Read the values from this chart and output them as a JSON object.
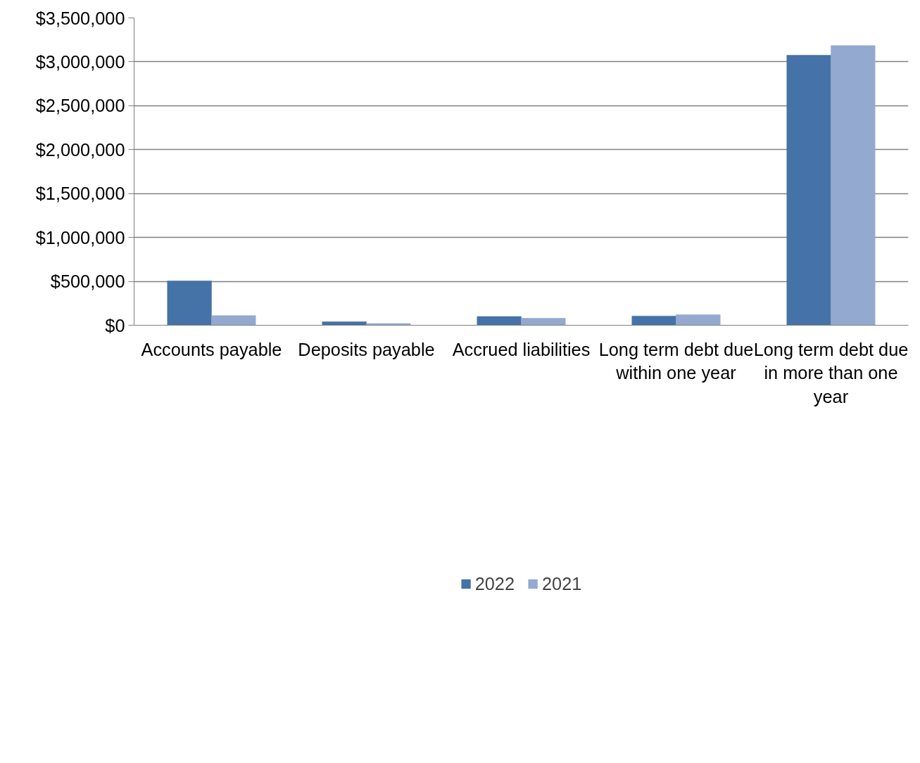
{
  "chart_data": {
    "type": "bar",
    "categories": [
      "Accounts payable",
      "Deposits payable",
      "Accrued liabilities",
      "Long term debt due within one year",
      "Long term debt due in more than one year"
    ],
    "series": [
      {
        "name": "2022",
        "color": "#4572a7",
        "values": [
          505000,
          40000,
          100000,
          105000,
          3075000
        ]
      },
      {
        "name": "2021",
        "color": "#94a9d0",
        "values": [
          110000,
          20000,
          80000,
          120000,
          3185000
        ]
      }
    ],
    "ylim": [
      0,
      3500000
    ],
    "yticks": [
      {
        "value": 0,
        "label": "$0"
      },
      {
        "value": 500000,
        "label": "$500,000"
      },
      {
        "value": 1000000,
        "label": "$1,000,000"
      },
      {
        "value": 1500000,
        "label": "$1,500,000"
      },
      {
        "value": 2000000,
        "label": "$2,000,000"
      },
      {
        "value": 2500000,
        "label": "$2,500,000"
      },
      {
        "value": 3000000,
        "label": "$3,000,000"
      },
      {
        "value": 3500000,
        "label": "$3,500,000"
      }
    ],
    "grid": "y",
    "legend": "bottom"
  }
}
